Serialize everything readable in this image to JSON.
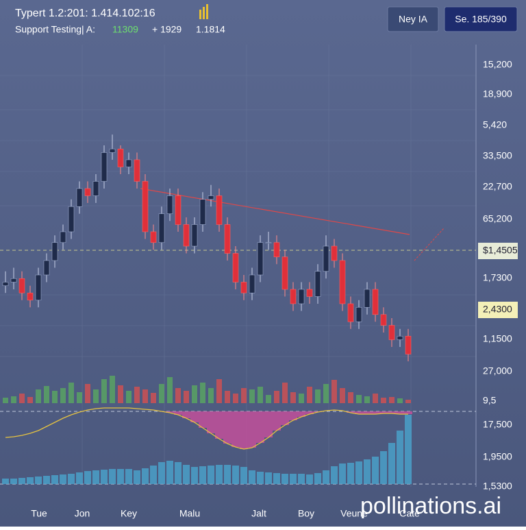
{
  "header": {
    "title": "Typert 1.2:201: 1.414.102:16",
    "subtitle": "Support Testing| A:",
    "change": "11309",
    "delta": "+ 1929",
    "last": "1.1814"
  },
  "buttons": [
    "Ney IA",
    "Se. 185/390"
  ],
  "price_axis": [
    "15,200",
    "18,900",
    "5,420",
    "33,500",
    "22,700",
    "65,200",
    "$1,4505",
    "1,7300",
    "2,4300",
    "1,1500",
    "27,000",
    "9,5",
    "17,500",
    "1,9500",
    "1,5300"
  ],
  "time_axis": [
    "Tue",
    "Jon",
    "Key",
    "Malu",
    "Jalt",
    "Boy",
    "Veune",
    "Cate"
  ],
  "watermark": "pollinations.ai",
  "chart_data": [
    {
      "type": "candlestick",
      "ylim": [
        0,
        100
      ],
      "y2lim": [
        0,
        100
      ],
      "up_color": "#1f2b4a",
      "down_color": "#e0303a",
      "volume_up_color": "#5aa860",
      "volume_down_color": "#d65050",
      "open": [
        33,
        34,
        35,
        31,
        29,
        36,
        40,
        45,
        48,
        55,
        60,
        58,
        62,
        70,
        71,
        66,
        68,
        62,
        48,
        45,
        53,
        58,
        50,
        44,
        50,
        57,
        58,
        50,
        42,
        34,
        31,
        36,
        45,
        45,
        41,
        32,
        28,
        32,
        30,
        37,
        44,
        40,
        28,
        23,
        27,
        32,
        25,
        22,
        18,
        19
      ],
      "close": [
        34,
        35,
        31,
        29,
        36,
        40,
        45,
        48,
        55,
        60,
        58,
        62,
        70,
        71,
        66,
        68,
        62,
        48,
        45,
        53,
        58,
        50,
        44,
        50,
        57,
        58,
        50,
        42,
        34,
        31,
        36,
        45,
        45,
        41,
        32,
        28,
        32,
        30,
        37,
        44,
        40,
        28,
        23,
        27,
        32,
        25,
        22,
        18,
        19,
        14
      ],
      "high": [
        37,
        38,
        37,
        33,
        38,
        42,
        47,
        50,
        57,
        62,
        62,
        64,
        72,
        75,
        72,
        70,
        70,
        64,
        50,
        55,
        60,
        60,
        52,
        52,
        59,
        61,
        60,
        52,
        44,
        36,
        38,
        47,
        48,
        47,
        43,
        34,
        34,
        34,
        39,
        47,
        46,
        42,
        30,
        29,
        34,
        34,
        27,
        24,
        21,
        21
      ],
      "low": [
        31,
        32,
        29,
        27,
        27,
        34,
        38,
        43,
        46,
        53,
        56,
        56,
        60,
        68,
        64,
        64,
        60,
        46,
        43,
        43,
        51,
        48,
        42,
        42,
        48,
        55,
        48,
        40,
        32,
        29,
        29,
        34,
        43,
        39,
        30,
        26,
        26,
        28,
        28,
        35,
        38,
        26,
        21,
        21,
        25,
        23,
        20,
        16,
        16,
        12
      ],
      "volume": [
        8,
        10,
        14,
        9,
        20,
        25,
        18,
        22,
        30,
        16,
        28,
        20,
        35,
        40,
        26,
        18,
        24,
        20,
        15,
        28,
        38,
        22,
        18,
        26,
        30,
        22,
        35,
        18,
        14,
        22,
        20,
        24,
        12,
        18,
        30,
        16,
        14,
        24,
        20,
        28,
        34,
        22,
        16,
        12,
        10,
        14,
        8,
        9,
        7,
        5
      ]
    },
    {
      "type": "indicator",
      "ylim": [
        -60,
        10
      ],
      "y2lim": [
        0,
        110
      ],
      "series": [
        {
          "name": "oscillator",
          "axis": "y",
          "color": "#e8c440",
          "bar_color": "#c2509a",
          "values": [
            -38,
            -37,
            -35,
            -32,
            -28,
            -22,
            -16,
            -10,
            -5,
            -1,
            2,
            4,
            5,
            5,
            5,
            5,
            4,
            3,
            2,
            0,
            -2,
            -5,
            -10,
            -16,
            -24,
            -32,
            -40,
            -47,
            -52,
            -55,
            -53,
            -46,
            -38,
            -28,
            -20,
            -13,
            -8,
            -4,
            -1,
            1,
            2,
            1,
            -2,
            -4,
            -4,
            -4,
            -3,
            -3,
            -4,
            -4
          ]
        },
        {
          "name": "bars",
          "axis": "y2",
          "color": "#4aa0c8",
          "values": [
            8,
            8,
            9,
            10,
            11,
            12,
            13,
            14,
            15,
            17,
            19,
            20,
            21,
            22,
            22,
            22,
            20,
            23,
            27,
            32,
            34,
            32,
            28,
            25,
            26,
            27,
            28,
            28,
            27,
            25,
            20,
            18,
            17,
            16,
            15,
            15,
            15,
            14,
            16,
            20,
            26,
            30,
            31,
            33,
            36,
            40,
            48,
            60,
            78,
            101
          ]
        }
      ]
    }
  ]
}
